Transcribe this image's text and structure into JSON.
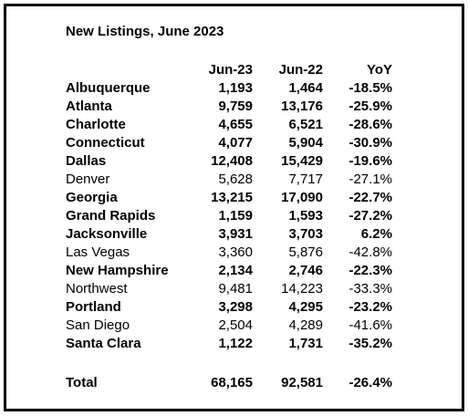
{
  "table": {
    "title": "New Listings, June 2023",
    "header": [
      "Jun-23",
      "Jun-22",
      "YoY"
    ],
    "rows": [
      {
        "name": "Albuquerque",
        "cells": [
          "1,193",
          "1,464",
          "-18.5%"
        ],
        "bold": true
      },
      {
        "name": "Atlanta",
        "cells": [
          "9,759",
          "13,176",
          "-25.9%"
        ],
        "bold": true
      },
      {
        "name": "Charlotte",
        "cells": [
          "4,655",
          "6,521",
          "-28.6%"
        ],
        "bold": true
      },
      {
        "name": "Connecticut",
        "cells": [
          "4,077",
          "5,904",
          "-30.9%"
        ],
        "bold": true
      },
      {
        "name": "Dallas",
        "cells": [
          "12,408",
          "15,429",
          "-19.6%"
        ],
        "bold": true
      },
      {
        "name": "Denver",
        "cells": [
          "5,628",
          "7,717",
          "-27.1%"
        ],
        "bold": false
      },
      {
        "name": "Georgia",
        "cells": [
          "13,215",
          "17,090",
          "-22.7%"
        ],
        "bold": true
      },
      {
        "name": "Grand Rapids",
        "cells": [
          "1,159",
          "1,593",
          "-27.2%"
        ],
        "bold": true
      },
      {
        "name": "Jacksonville",
        "cells": [
          "3,931",
          "3,703",
          "6.2%"
        ],
        "bold": true
      },
      {
        "name": "Las Vegas",
        "cells": [
          "3,360",
          "5,876",
          "-42.8%"
        ],
        "bold": false
      },
      {
        "name": "New Hampshire",
        "cells": [
          "2,134",
          "2,746",
          "-22.3%"
        ],
        "bold": true
      },
      {
        "name": "Northwest",
        "cells": [
          "9,481",
          "14,223",
          "-33.3%"
        ],
        "bold": false
      },
      {
        "name": "Portland",
        "cells": [
          "3,298",
          "4,295",
          "-23.2%"
        ],
        "bold": true
      },
      {
        "name": "San Diego",
        "cells": [
          "2,504",
          "4,289",
          "-41.6%"
        ],
        "bold": false
      },
      {
        "name": "Santa Clara",
        "cells": [
          "1,122",
          "1,731",
          "-35.2%"
        ],
        "bold": true
      }
    ],
    "total": {
      "name": "Total",
      "cells": [
        "68,165",
        "92,581",
        "-26.4%"
      ],
      "bold": true
    }
  }
}
